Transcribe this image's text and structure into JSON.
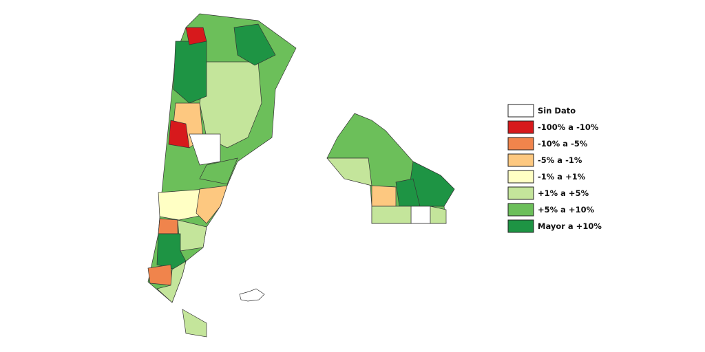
{
  "legend": [
    {
      "label": "Sin Dato",
      "color": "#ffffff"
    },
    {
      "label": "-100% a -10%",
      "color": "#d7191c"
    },
    {
      "label": "-10% a -5%",
      "color": "#f0844c"
    },
    {
      "label": "-5% a -1%",
      "color": "#fdc880"
    },
    {
      "label": "-1% a +1%",
      "color": "#ffffc4"
    },
    {
      "label": "+1% a +5%",
      "color": "#c4e59b"
    },
    {
      "label": "+5% a +10%",
      "color": "#6cbf5a"
    },
    {
      "label": "Mayor a +10%",
      "color": "#1e9444"
    }
  ]
}
